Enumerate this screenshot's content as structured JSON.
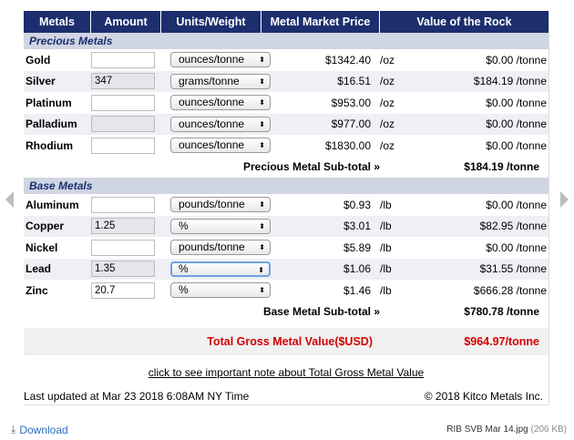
{
  "header": {
    "metals": "Metals",
    "amount": "Amount",
    "units": "Units/Weight",
    "price": "Metal Market Price",
    "value": "Value of the Rock"
  },
  "precious": {
    "title": "Precious Metals",
    "rows": [
      {
        "metal": "Gold",
        "amount": "",
        "unit": "ounces/tonne",
        "price": "$1342.40",
        "per": "/oz",
        "value": "$0.00 /tonne"
      },
      {
        "metal": "Silver",
        "amount": "347",
        "unit": "grams/tonne",
        "price": "$16.51",
        "per": "/oz",
        "value": "$184.19 /tonne"
      },
      {
        "metal": "Platinum",
        "amount": "",
        "unit": "ounces/tonne",
        "price": "$953.00",
        "per": "/oz",
        "value": "$0.00 /tonne"
      },
      {
        "metal": "Palladium",
        "amount": "",
        "unit": "ounces/tonne",
        "price": "$977.00",
        "per": "/oz",
        "value": "$0.00 /tonne"
      },
      {
        "metal": "Rhodium",
        "amount": "",
        "unit": "ounces/tonne",
        "price": "$1830.00",
        "per": "/oz",
        "value": "$0.00 /tonne"
      }
    ],
    "subtotal_label": "Precious Metal Sub-total »",
    "subtotal_value": "$184.19 /tonne"
  },
  "base": {
    "title": "Base Metals",
    "rows": [
      {
        "metal": "Aluminum",
        "amount": "",
        "unit": "pounds/tonne",
        "price": "$0.93",
        "per": "/lb",
        "value": "$0.00 /tonne"
      },
      {
        "metal": "Copper",
        "amount": "1.25",
        "unit": "%",
        "price": "$3.01",
        "per": "/lb",
        "value": "$82.95 /tonne"
      },
      {
        "metal": "Nickel",
        "amount": "",
        "unit": "pounds/tonne",
        "price": "$5.89",
        "per": "/lb",
        "value": "$0.00 /tonne"
      },
      {
        "metal": "Lead",
        "amount": "1.35",
        "unit": "%",
        "price": "$1.06",
        "per": "/lb",
        "value": "$31.55 /tonne"
      },
      {
        "metal": "Zinc",
        "amount": "20.7",
        "unit": "%",
        "price": "$1.46",
        "per": "/lb",
        "value": "$666.28 /tonne"
      }
    ],
    "subtotal_label": "Base Metal Sub-total »",
    "subtotal_value": "$780.78 /tonne"
  },
  "gross": {
    "label": "Total Gross Metal Value($USD)",
    "value": "$964.97/tonne"
  },
  "note_link": "click to see important note about Total Gross Metal Value",
  "footer": {
    "updated": "Last updated at Mar 23 2018 6:08AM NY Time",
    "copyright": "© 2018 Kitco Metals Inc."
  },
  "bottom": {
    "download_label": "Download",
    "download_icon": "download-arrow-icon",
    "filename": "RIB SVB Mar 14.jpg",
    "filesize": "(206 KB)"
  },
  "icons": {
    "select_arrow": "⬍",
    "nav_prev": "chevron-left-icon",
    "nav_next": "chevron-right-icon"
  },
  "colors": {
    "header_bg": "#1d2e6e",
    "section_bg": "#cfd5e3",
    "gross_text": "#d40000",
    "link": "#2a6fbf"
  }
}
